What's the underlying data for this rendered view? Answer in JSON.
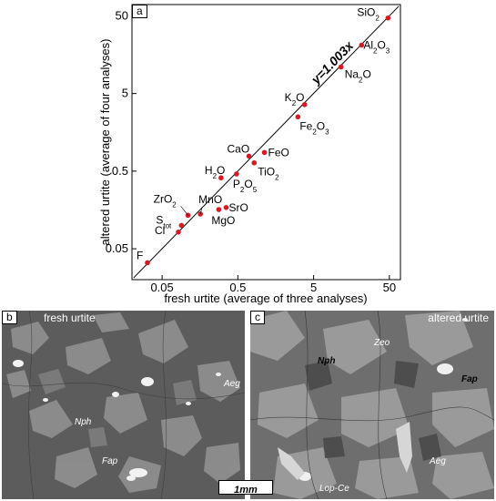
{
  "panel_a": {
    "label": "a",
    "chart_data": {
      "type": "scatter",
      "xlabel": "fresh urtite (average of three analyses)",
      "ylabel": "altered urtite (average of four analyses)",
      "x_scale": "log",
      "y_scale": "log",
      "xlim": [
        0.02,
        70
      ],
      "ylim": [
        0.02,
        70
      ],
      "x_ticks": [
        "0.05",
        "0.5",
        "5",
        "50"
      ],
      "y_ticks": [
        "0.05",
        "0.5",
        "5",
        "50"
      ],
      "fit_label": "y=1.003x",
      "fit_slope": 1.003,
      "point_color": "#d71920",
      "points": [
        {
          "name": "SiO2",
          "label": "SiO",
          "sub": "2",
          "label_tail": "",
          "x": 48.0,
          "y": 47.0
        },
        {
          "name": "Al2O3",
          "label": "Al",
          "sub": "2",
          "label_tail": "O",
          "sub2": "3",
          "x": 21.5,
          "y": 21.0
        },
        {
          "name": "Na2O",
          "label": "Na",
          "sub": "2",
          "label_tail": "O",
          "x": 11.5,
          "y": 11.0
        },
        {
          "name": "K2O",
          "label": "K",
          "sub": "2",
          "label_tail": "O",
          "x": 3.8,
          "y": 3.6
        },
        {
          "name": "Fe2O3",
          "label": "Fe",
          "sub": "2",
          "label_tail": "O",
          "sub2": "3",
          "x": 3.1,
          "y": 2.5
        },
        {
          "name": "FeO",
          "label": "FeO",
          "x": 1.12,
          "y": 0.87
        },
        {
          "name": "CaO",
          "label": "CaO",
          "x": 0.7,
          "y": 0.78
        },
        {
          "name": "TiO2",
          "label": "TiO",
          "sub": "2",
          "x": 0.82,
          "y": 0.64
        },
        {
          "name": "H2O",
          "label": "H",
          "sub": "2",
          "label_tail": "O",
          "x": 0.3,
          "y": 0.41
        },
        {
          "name": "P2O5",
          "label": "P",
          "sub": "2",
          "label_tail": "O",
          "sub2": "5",
          "x": 0.48,
          "y": 0.46
        },
        {
          "name": "SrO",
          "label": "SrO",
          "x": 0.35,
          "y": 0.17
        },
        {
          "name": "MgO",
          "label": "MgO",
          "x": 0.28,
          "y": 0.16
        },
        {
          "name": "MnO",
          "label": "MnO",
          "x": 0.16,
          "y": 0.14
        },
        {
          "name": "ZrO2",
          "label": "ZrO",
          "sub": "2",
          "x": 0.11,
          "y": 0.135
        },
        {
          "name": "Stot",
          "label": "S",
          "sub": "tot",
          "x": 0.09,
          "y": 0.1
        },
        {
          "name": "Cl",
          "label": "Cl",
          "x": 0.082,
          "y": 0.082
        },
        {
          "name": "F",
          "label": "F",
          "x": 0.032,
          "y": 0.033
        }
      ]
    }
  },
  "panel_b": {
    "label": "b",
    "title": "fresh urtite",
    "mineral_labels": [
      "Aeg",
      "Nph",
      "Fap"
    ]
  },
  "panel_c": {
    "label": "c",
    "title": "altered urtite",
    "mineral_labels": [
      "Zeo",
      "Nph",
      "Fap",
      "Aeg",
      "Lop-Ce"
    ]
  },
  "scale_bar": {
    "label": "1mm"
  }
}
